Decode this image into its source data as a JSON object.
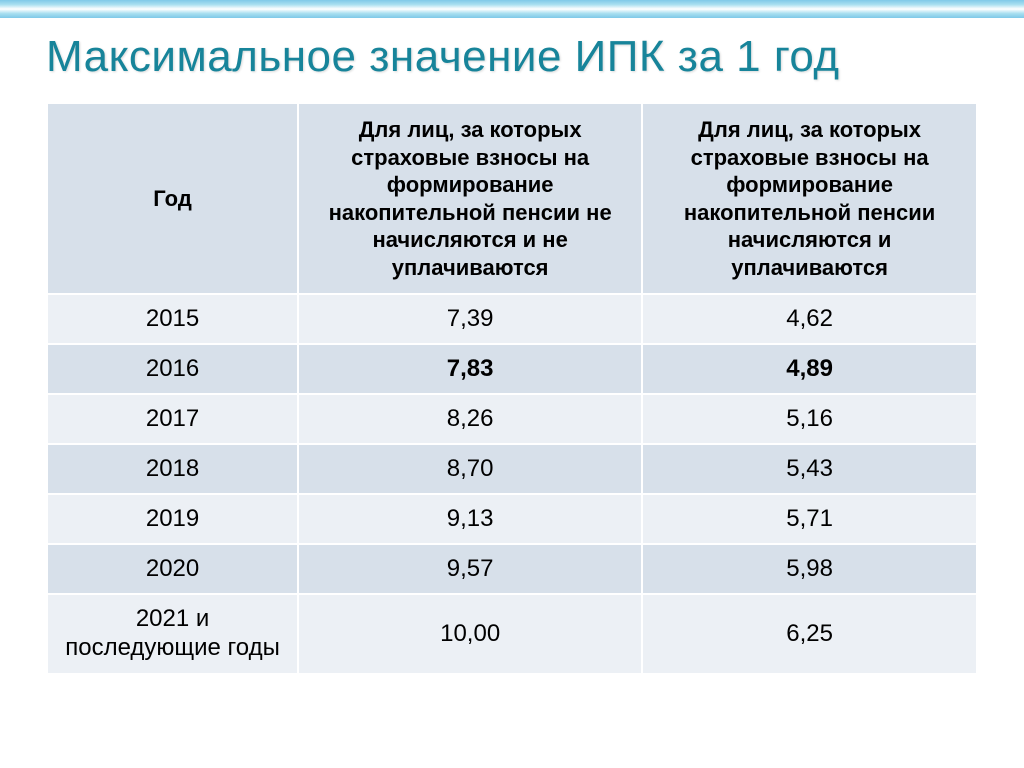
{
  "title": "Максимальное значение ИПК за 1 год",
  "columns": {
    "year": "Год",
    "colA": "Для лиц, за которых страховые взносы на формирование накопительной пенсии не начисляются и не уплачиваются",
    "colB": "Для лиц, за которых страховые взносы на формирование накопительной пенсии начисляются и уплачиваются"
  },
  "rows": [
    {
      "year": "2015",
      "a": "7,39",
      "b": "4,62",
      "bold": false
    },
    {
      "year": "2016",
      "a": "7,83",
      "b": "4,89",
      "bold": true
    },
    {
      "year": "2017",
      "a": "8,26",
      "b": "5,16",
      "bold": false
    },
    {
      "year": "2018",
      "a": "8,70",
      "b": "5,43",
      "bold": false
    },
    {
      "year": "2019",
      "a": "9,13",
      "b": "5,71",
      "bold": false
    },
    {
      "year": "2020",
      "a": "9,57",
      "b": "5,98",
      "bold": false
    },
    {
      "year": "2021 и последующие годы",
      "a": "10,00",
      "b": "6,25",
      "bold": false,
      "multiline": true
    }
  ],
  "styling": {
    "header_bg": "#d7e0ea",
    "row_odd_bg": "#ecf0f5",
    "row_even_bg": "#d7e0ea",
    "title_color": "#17849a",
    "text_color": "#000000",
    "border_color": "#ffffff",
    "title_fontsize": 44,
    "header_fontsize": 22,
    "cell_fontsize": 24
  }
}
